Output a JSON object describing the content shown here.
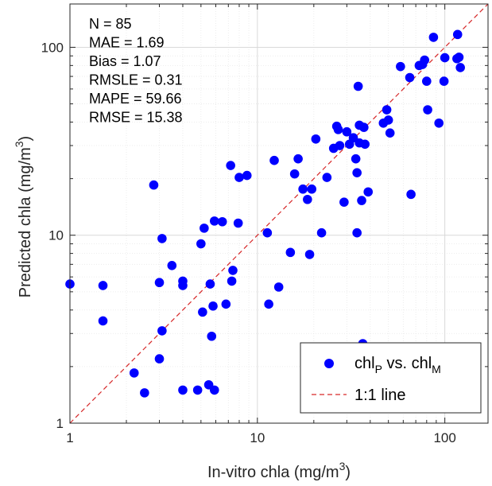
{
  "chart_data": {
    "type": "scatter",
    "xlabel": "In-vitro chla (mg/m",
    "ylabel": "Predicted chla (mg/m",
    "unit_superscript": "3",
    "unit_close": ")",
    "x_scale": "log",
    "y_scale": "log",
    "xlim": [
      1,
      170
    ],
    "ylim": [
      1,
      170
    ],
    "grid": true,
    "x_ticks": [
      {
        "value": 1,
        "label": "1"
      },
      {
        "value": 10,
        "label": "10"
      },
      {
        "value": 100,
        "label": "100"
      }
    ],
    "y_ticks": [
      {
        "value": 1,
        "label": "1"
      },
      {
        "value": 10,
        "label": "10"
      },
      {
        "value": 100,
        "label": "100"
      }
    ],
    "stats": [
      "N = 85",
      "MAE = 1.69",
      "Bias = 1.07",
      "RMSLE = 0.31",
      "MAPE = 59.66",
      "RMSE = 15.38"
    ],
    "legend": {
      "placement": "bottom-right",
      "scatter_entry": {
        "base1": "chl",
        "sub1": "P",
        "mid": " vs. chl",
        "sub2": "M"
      },
      "line_entry": "1:1 line"
    },
    "colors": {
      "points": "#0000ff",
      "one_to_one_line": "#d62728",
      "grid": "#e6e6e6",
      "axes": "#262626"
    },
    "series": [
      {
        "kind": "points",
        "points": [
          [
            1.0,
            5.5
          ],
          [
            1.5,
            5.4
          ],
          [
            1.5,
            3.5
          ],
          [
            2.2,
            1.85
          ],
          [
            2.5,
            1.45
          ],
          [
            2.8,
            18.5
          ],
          [
            3.0,
            5.6
          ],
          [
            3.0,
            2.2
          ],
          [
            3.1,
            9.6
          ],
          [
            3.1,
            3.1
          ],
          [
            3.5,
            6.9
          ],
          [
            4.0,
            5.4
          ],
          [
            4.0,
            5.7
          ],
          [
            4.0,
            1.5
          ],
          [
            4.8,
            1.5
          ],
          [
            5.0,
            9.0
          ],
          [
            5.1,
            3.9
          ],
          [
            5.2,
            10.9
          ],
          [
            5.5,
            1.6
          ],
          [
            5.6,
            5.5
          ],
          [
            5.7,
            2.9
          ],
          [
            5.8,
            4.2
          ],
          [
            5.9,
            11.9
          ],
          [
            5.9,
            1.5
          ],
          [
            6.5,
            11.8
          ],
          [
            6.8,
            4.3
          ],
          [
            7.2,
            23.5
          ],
          [
            7.3,
            5.7
          ],
          [
            7.4,
            6.5
          ],
          [
            7.9,
            11.6
          ],
          [
            8.0,
            20.3
          ],
          [
            8.8,
            20.8
          ],
          [
            11.3,
            10.3
          ],
          [
            11.5,
            4.3
          ],
          [
            12.3,
            25.0
          ],
          [
            13.0,
            5.3
          ],
          [
            15.0,
            8.1
          ],
          [
            15.8,
            21.2
          ],
          [
            16.5,
            25.5
          ],
          [
            17.5,
            17.6
          ],
          [
            18.5,
            15.5
          ],
          [
            19.0,
            7.9
          ],
          [
            19.5,
            17.6
          ],
          [
            20.5,
            32.5
          ],
          [
            22.0,
            10.3
          ],
          [
            23.5,
            20.3
          ],
          [
            25.5,
            29.0
          ],
          [
            26.5,
            38.0
          ],
          [
            27.0,
            36.5
          ],
          [
            27.5,
            30.0
          ],
          [
            29.0,
            15.0
          ],
          [
            30.0,
            35.5
          ],
          [
            31.0,
            30.5
          ],
          [
            32.5,
            33.0
          ],
          [
            33.5,
            25.5
          ],
          [
            34.0,
            10.3
          ],
          [
            34.0,
            21.5
          ],
          [
            34.5,
            62.0
          ],
          [
            35.0,
            38.5
          ],
          [
            35.0,
            31.0
          ],
          [
            36.0,
            15.3
          ],
          [
            36.5,
            2.65
          ],
          [
            37.0,
            37.5
          ],
          [
            37.5,
            30.5
          ],
          [
            39.0,
            17.0
          ],
          [
            47.0,
            39.5
          ],
          [
            49.0,
            46.5
          ],
          [
            50.0,
            41.0
          ],
          [
            51.0,
            35.0
          ],
          [
            58.0,
            79.0
          ],
          [
            65.0,
            69.0
          ],
          [
            66.0,
            16.5
          ],
          [
            73.0,
            80.0
          ],
          [
            76.0,
            81.0
          ],
          [
            78.0,
            85.5
          ],
          [
            80.0,
            66.0
          ],
          [
            81.0,
            46.5
          ],
          [
            87.0,
            113.0
          ],
          [
            93.0,
            39.5
          ],
          [
            99.0,
            66.0
          ],
          [
            100.0,
            88.0
          ],
          [
            116.0,
            87.0
          ],
          [
            117.0,
            117.0
          ],
          [
            119.0,
            88.5
          ],
          [
            121.0,
            78.0
          ]
        ]
      },
      {
        "kind": "line",
        "points": [
          [
            1,
            1
          ],
          [
            170,
            170
          ]
        ]
      }
    ]
  }
}
